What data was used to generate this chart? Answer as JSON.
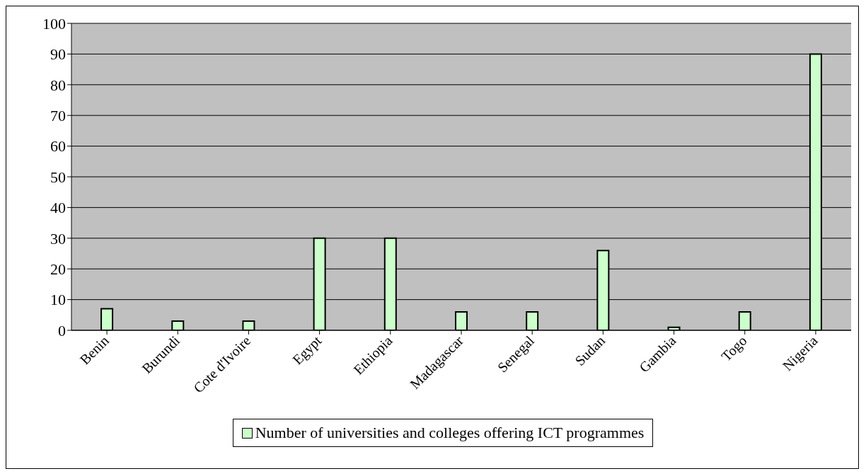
{
  "chart_data": {
    "type": "bar",
    "categories": [
      "Benin",
      "Burundi",
      "Cote d'Ivoire",
      "Egypt",
      "Ethiopia",
      "Madagascar",
      "Senegal",
      "Sudan",
      "Gambia",
      "Togo",
      "Nigeria"
    ],
    "series": [
      {
        "name": "Number of universities and colleges offering ICT programmes",
        "color": "#ccffcc",
        "values": [
          7,
          3,
          3,
          30,
          30,
          6,
          6,
          26,
          1,
          6,
          90
        ]
      }
    ],
    "ylim": [
      0,
      100
    ],
    "yticks": [
      0,
      10,
      20,
      30,
      40,
      50,
      60,
      70,
      80,
      90,
      100
    ],
    "grid": "y",
    "legend": "bottom"
  }
}
